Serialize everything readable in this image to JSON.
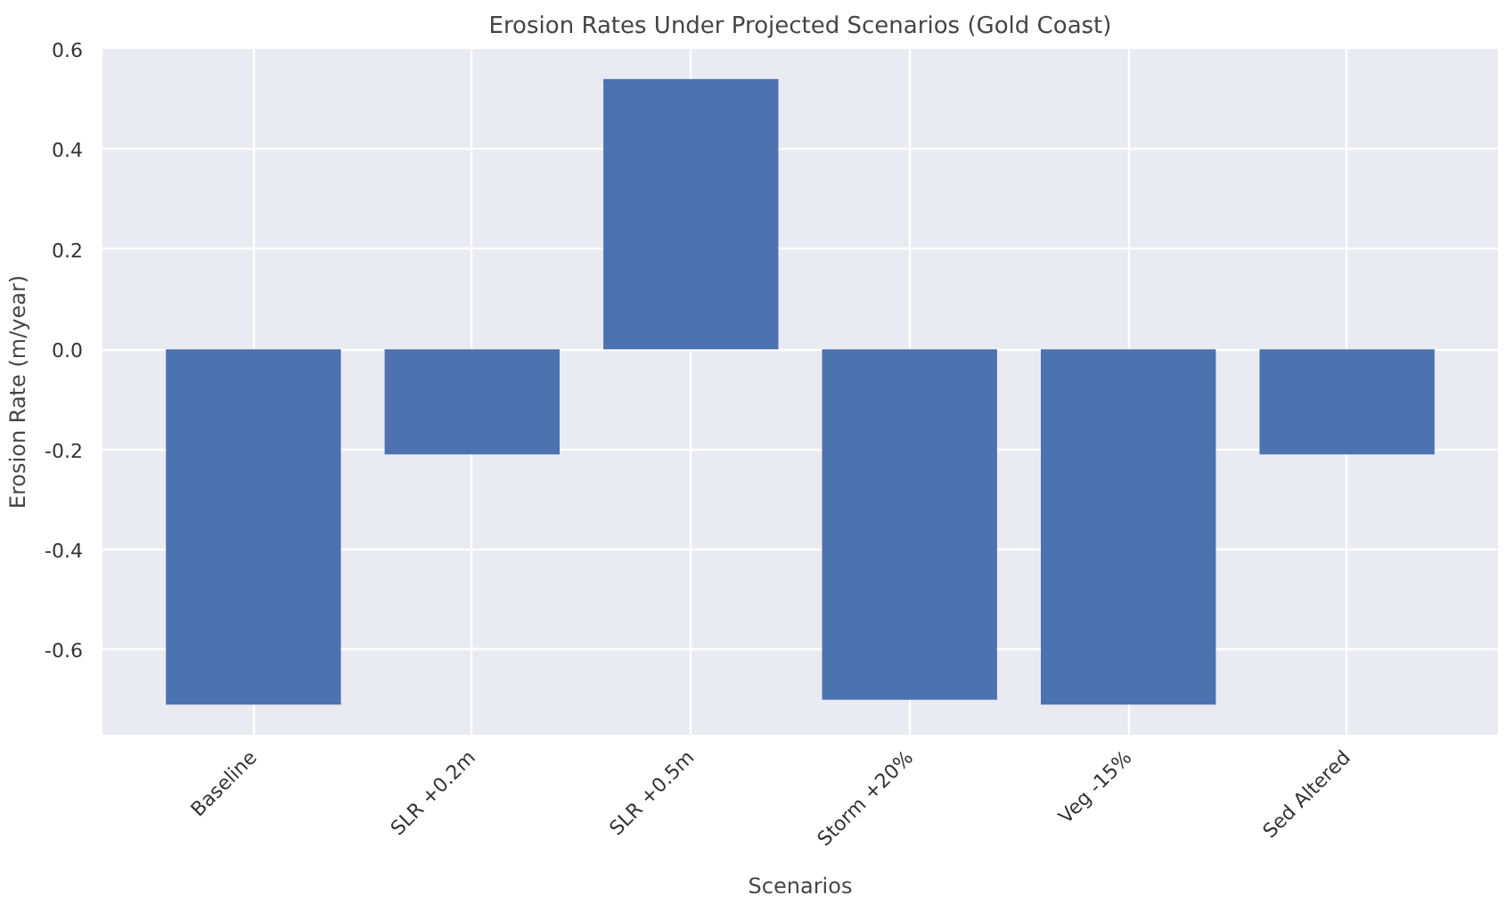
{
  "chart_data": {
    "type": "bar",
    "title": "Erosion Rates Under Projected Scenarios (Gold Coast)",
    "xlabel": "Scenarios",
    "ylabel": "Erosion Rate (m/year)",
    "categories": [
      "Baseline",
      "SLR +0.2m",
      "SLR +0.5m",
      "Storm +20%",
      "Veg -15%",
      "Sed Altered"
    ],
    "values": [
      -0.71,
      -0.21,
      0.54,
      -0.7,
      -0.71,
      -0.21
    ],
    "color": "#4c72b0",
    "ylim": [
      -0.77,
      0.6
    ],
    "yticks": [
      {
        "value": -0.6,
        "label": "-0.6"
      },
      {
        "value": -0.4,
        "label": "-0.4"
      },
      {
        "value": -0.2,
        "label": "-0.2"
      },
      {
        "value": 0,
        "label": "0.0"
      },
      {
        "value": 0.2,
        "label": "0.2"
      },
      {
        "value": 0.4,
        "label": "0.4"
      },
      {
        "value": 0.6,
        "label": "0.6"
      }
    ],
    "grid": true
  }
}
